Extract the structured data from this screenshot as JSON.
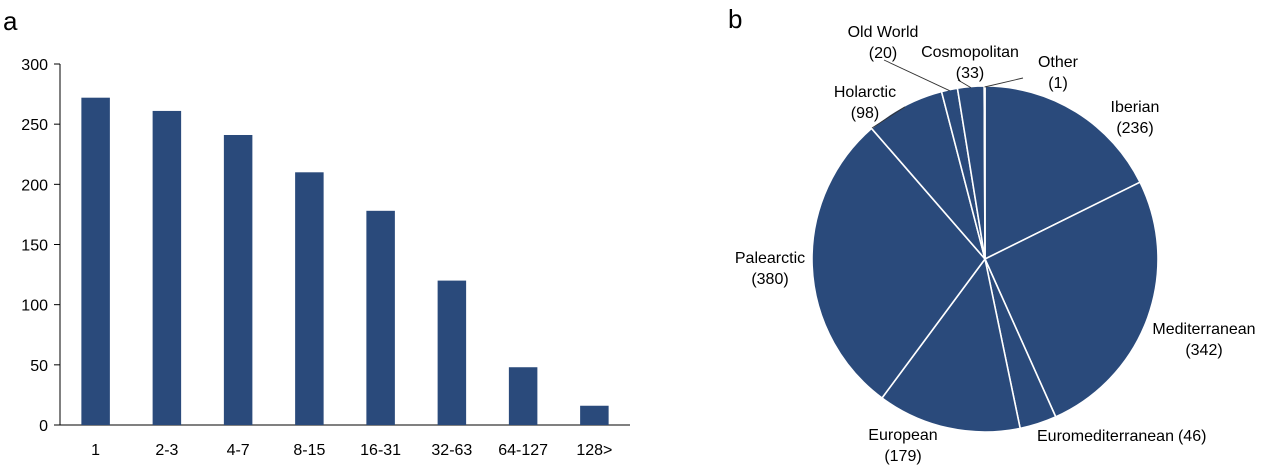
{
  "panels": {
    "a": "a",
    "b": "b"
  },
  "chart_data": [
    {
      "type": "bar",
      "categories": [
        "1",
        "2-3",
        "4-7",
        "8-15",
        "16-31",
        "32-63",
        "64-127",
        "128>"
      ],
      "values": [
        272,
        261,
        241,
        210,
        178,
        120,
        48,
        16
      ],
      "ylim": [
        0,
        300
      ],
      "yticks": [
        0,
        50,
        100,
        150,
        200,
        250,
        300
      ],
      "title": "",
      "xlabel": "",
      "ylabel": "",
      "grid": false,
      "color": "#2a4a7b"
    },
    {
      "type": "pie",
      "slices": [
        {
          "label": "Iberian",
          "value": 236,
          "value_text": "(236)"
        },
        {
          "label": "Mediterranean",
          "value": 342,
          "value_text": "(342)"
        },
        {
          "label": "Euromediterranean",
          "value": 46,
          "value_text": "(46)"
        },
        {
          "label": "European",
          "value": 179,
          "value_text": "(179)"
        },
        {
          "label": "Palearctic",
          "value": 380,
          "value_text": "(380)"
        },
        {
          "label": "Holarctic",
          "value": 98,
          "value_text": "(98)"
        },
        {
          "label": "Old World",
          "value": 20,
          "value_text": "(20)"
        },
        {
          "label": "Cosmopolitan",
          "value": 33,
          "value_text": "(33)"
        },
        {
          "label": "Other",
          "value": 1,
          "value_text": "(1)"
        }
      ],
      "start": "12 o'clock",
      "direction": "clockwise",
      "color": "#2a4a7b",
      "separator_color": "#ffffff"
    }
  ]
}
